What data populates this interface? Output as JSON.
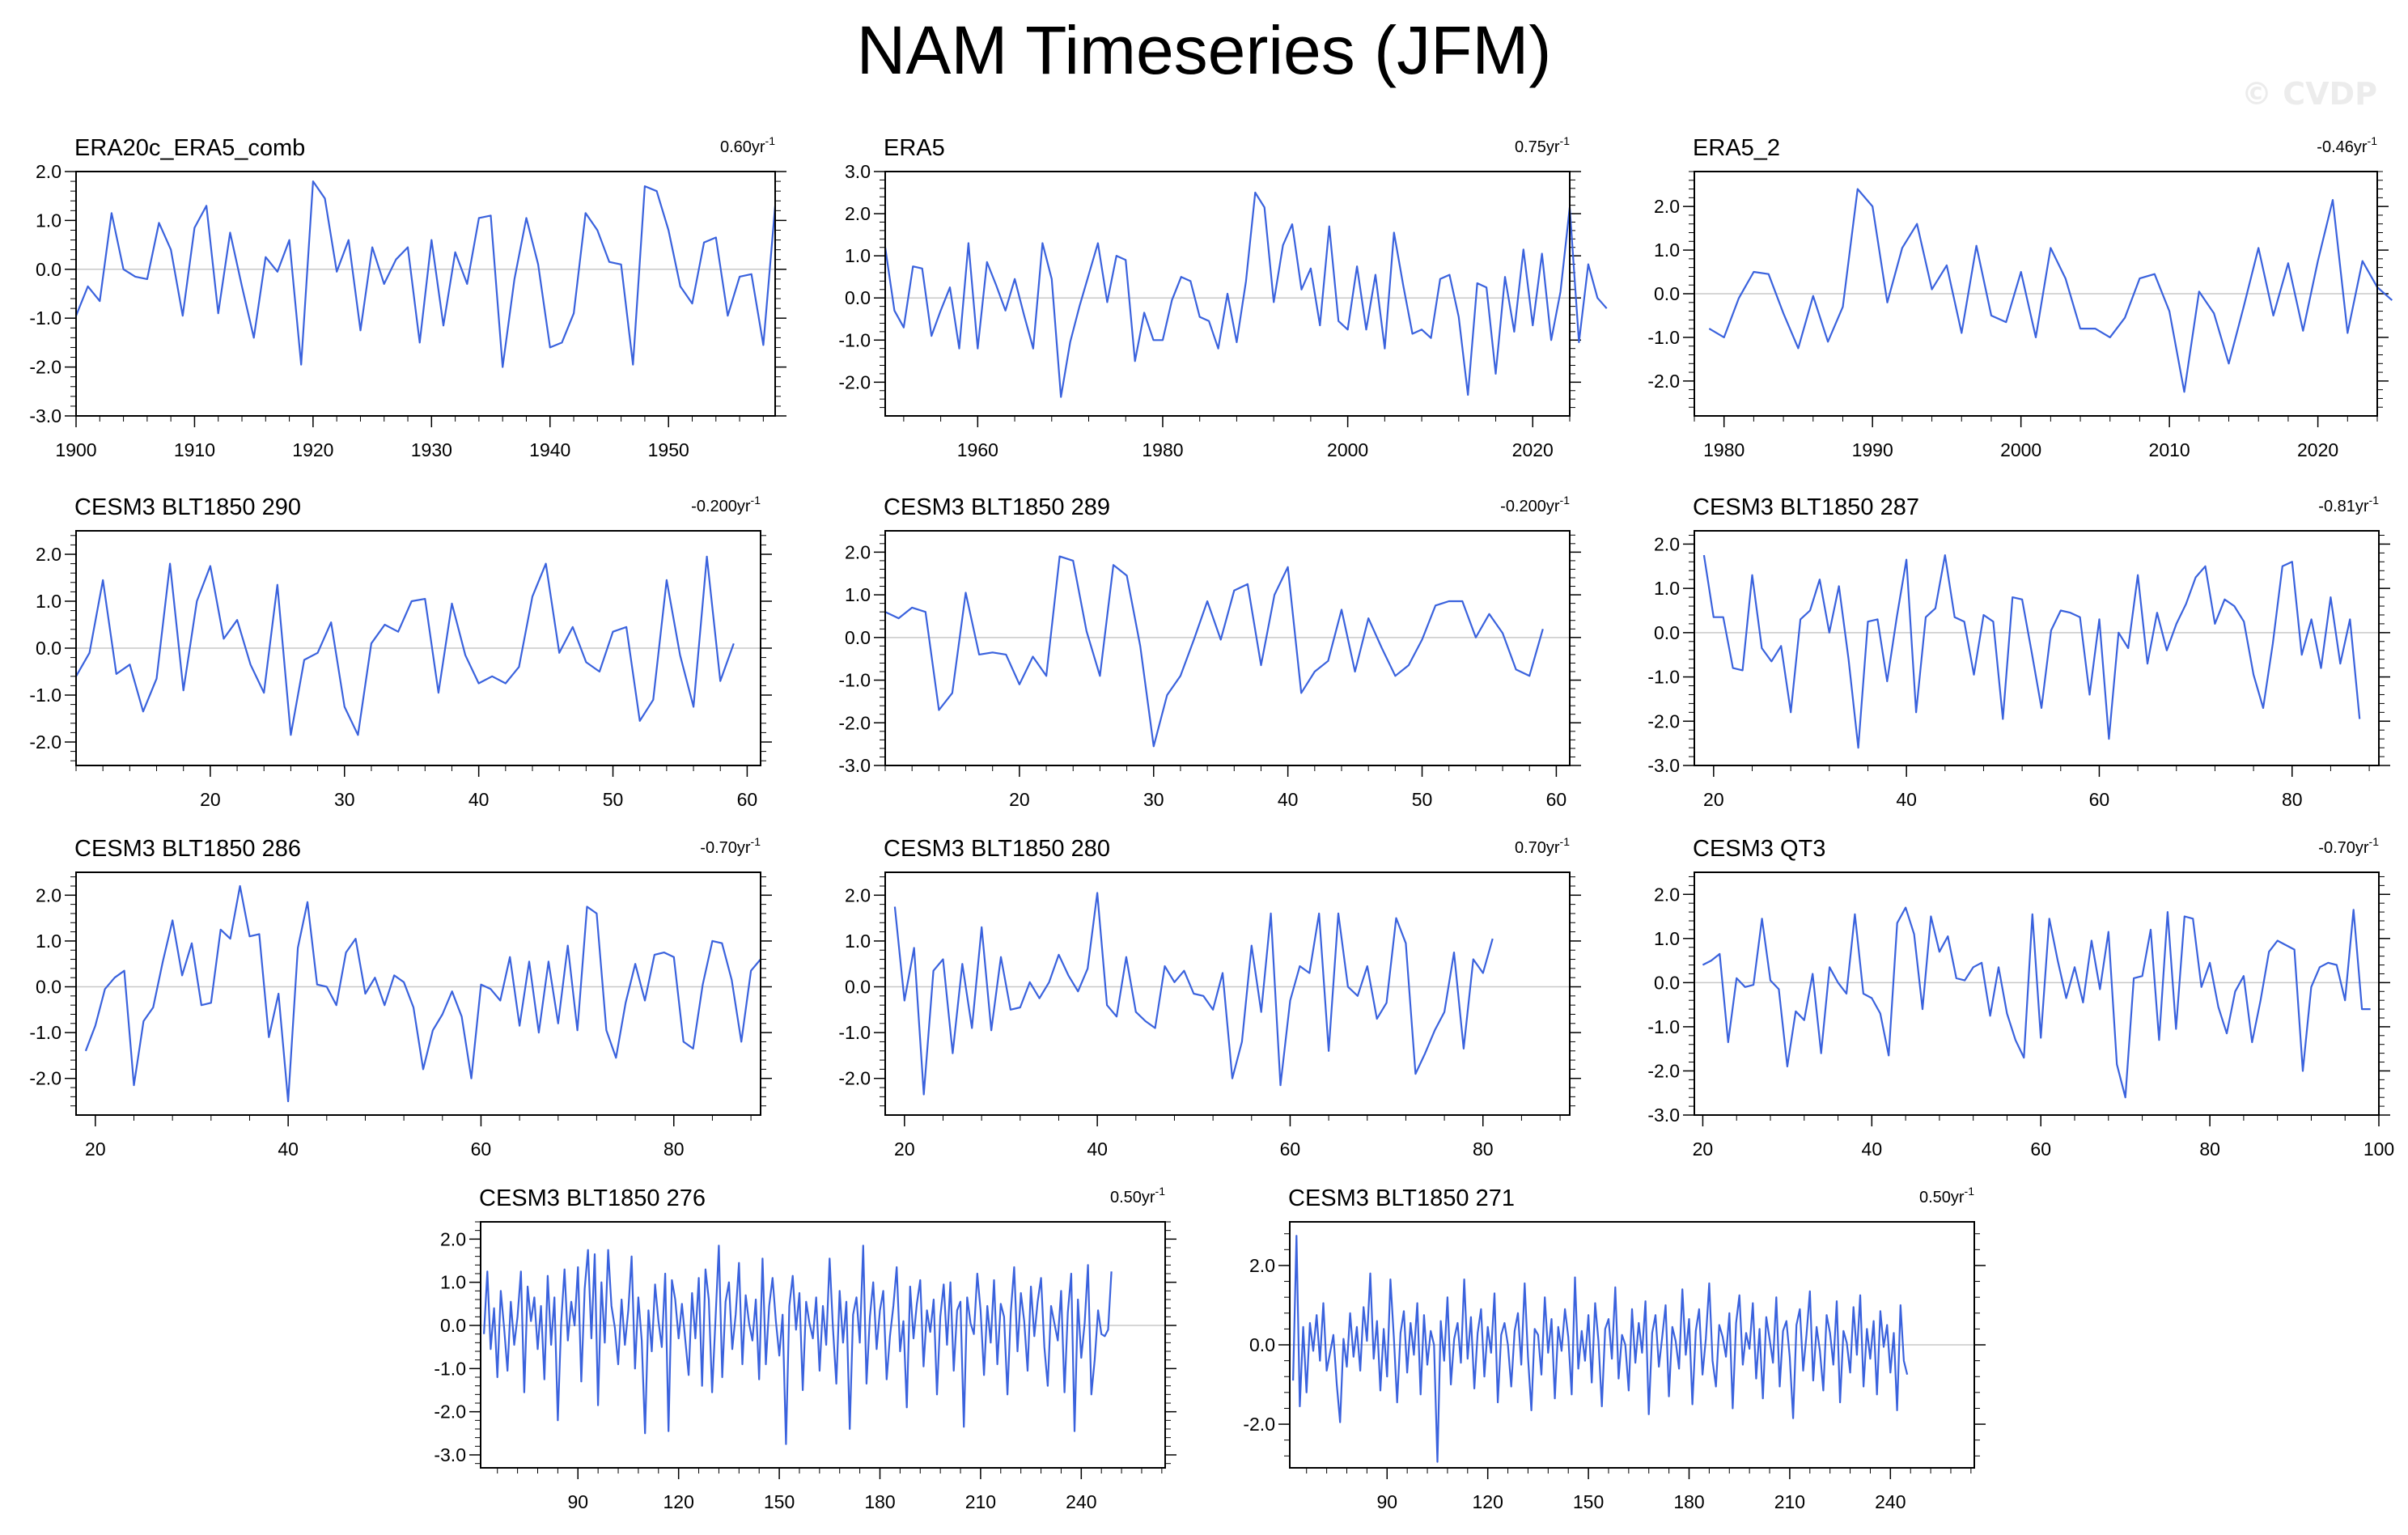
{
  "title": "NAM Timeseries (JFM)",
  "watermark": "© CVDP",
  "colors": {
    "line": "#3a62dd",
    "second_line": "#888888",
    "zero_line": "#c8c8c8",
    "frame": "#000000"
  },
  "chart_data": [
    {
      "type": "line",
      "name": "ERA20c_ERA5_comb",
      "trend_prefix": "0.60yr",
      "trend_suffix": "-1",
      "xlim": [
        1900,
        1959
      ],
      "ylim": [
        -3,
        2
      ],
      "xticks": [
        1900,
        1910,
        1920,
        1930,
        1940,
        1950
      ],
      "yticks": [
        "2.0",
        "1.0",
        "0.0",
        "-1.0",
        "-2.0",
        "-3.0"
      ],
      "x_start": 1900,
      "values": [
        -0.95,
        -0.35,
        -0.65,
        1.15,
        0.0,
        -0.15,
        -0.2,
        0.95,
        0.4,
        -0.95,
        0.85,
        1.3,
        -0.9,
        0.75,
        -0.35,
        -1.4,
        0.25,
        -0.05,
        0.6,
        -1.95,
        1.8,
        1.45,
        -0.05,
        0.6,
        -1.25,
        0.45,
        -0.3,
        0.2,
        0.45,
        -1.5,
        0.6,
        -1.15,
        0.35,
        -0.3,
        1.05,
        1.1,
        -2.0,
        -0.2,
        1.05,
        0.1,
        -1.6,
        -1.5,
        -0.9,
        1.15,
        0.8,
        0.15,
        0.1,
        -1.95,
        1.7,
        1.6,
        0.8,
        -0.35,
        -0.7,
        0.55,
        0.65,
        -0.95,
        -0.15,
        -0.1,
        -1.55,
        1.3
      ]
    },
    {
      "type": "line",
      "name": "ERA5",
      "trend_prefix": "0.75yr",
      "trend_suffix": "-1",
      "xlim": [
        1950,
        2024
      ],
      "ylim": [
        -2.8,
        3
      ],
      "xticks": [
        1960,
        1980,
        2000,
        2020
      ],
      "yticks": [
        "3.0",
        "2.0",
        "1.0",
        "0.0",
        "-1.0",
        "-2.0"
      ],
      "x_start": 1950,
      "values": [
        1.2,
        -0.3,
        -0.7,
        0.75,
        0.7,
        -0.9,
        -0.3,
        0.25,
        -1.2,
        1.3,
        -1.2,
        0.85,
        0.3,
        -0.3,
        0.45,
        -0.4,
        -1.2,
        1.3,
        0.45,
        -2.35,
        -1.05,
        -0.2,
        0.55,
        1.3,
        -0.1,
        1.0,
        0.9,
        -1.5,
        -0.35,
        -1.0,
        -1.0,
        -0.05,
        0.5,
        0.4,
        -0.45,
        -0.55,
        -1.2,
        0.1,
        -1.05,
        0.4,
        2.5,
        2.15,
        -0.1,
        1.25,
        1.75,
        0.2,
        0.7,
        -0.65,
        1.7,
        -0.55,
        -0.75,
        0.75,
        -0.75,
        0.55,
        -1.2,
        1.55,
        0.3,
        -0.85,
        -0.75,
        -0.95,
        0.45,
        0.55,
        -0.45,
        -2.3,
        0.35,
        0.25,
        -1.8,
        0.5,
        -0.8,
        1.15,
        -0.65,
        1.05,
        -1.0,
        0.15,
        2.15,
        -1.05,
        0.8,
        0.0,
        -0.25
      ]
    },
    {
      "type": "line",
      "name": "ERA5_2",
      "trend_prefix": "-0.46yr",
      "trend_suffix": "-1",
      "xlim": [
        1978,
        2024
      ],
      "ylim": [
        -2.8,
        2.8
      ],
      "xticks": [
        1980,
        1990,
        2000,
        2010,
        2020
      ],
      "yticks": [
        "2.0",
        "1.0",
        "0.0",
        "-1.0",
        "-2.0"
      ],
      "x_start": 1979,
      "values": [
        -0.8,
        -1.0,
        -0.1,
        0.5,
        0.45,
        -0.45,
        -1.25,
        -0.05,
        -1.1,
        -0.3,
        2.4,
        2.0,
        -0.2,
        1.05,
        1.6,
        0.1,
        0.65,
        -0.9,
        1.1,
        -0.5,
        -0.65,
        0.5,
        -1.0,
        1.05,
        0.35,
        -0.8,
        -0.8,
        -1.0,
        -0.55,
        0.35,
        0.45,
        -0.4,
        -2.25,
        0.05,
        -0.45,
        -1.6,
        -0.3,
        1.05,
        -0.5,
        0.7,
        -0.85,
        0.75,
        2.15,
        -0.9,
        0.75,
        0.15,
        -0.15
      ]
    },
    {
      "type": "line",
      "name": "CESM3 BLT1850 290",
      "trend_prefix": "-0.200yr",
      "trend_suffix": "-1",
      "xlim": [
        10,
        61
      ],
      "ylim": [
        -2.5,
        2.5
      ],
      "xticks": [
        20,
        30,
        40,
        50,
        60
      ],
      "yticks": [
        "2.0",
        "1.0",
        "0.0",
        "-1.0",
        "-2.0"
      ],
      "x_start": 10,
      "values": [
        -0.6,
        -0.1,
        1.45,
        -0.55,
        -0.35,
        -1.35,
        -0.65,
        1.8,
        -0.9,
        1.0,
        1.75,
        0.2,
        0.6,
        -0.35,
        -0.95,
        1.35,
        -1.85,
        -0.25,
        -0.1,
        0.55,
        -1.25,
        -1.85,
        0.1,
        0.5,
        0.35,
        1.0,
        1.05,
        -0.95,
        0.95,
        -0.15,
        -0.75,
        -0.6,
        -0.75,
        -0.4,
        1.1,
        1.8,
        -0.1,
        0.45,
        -0.3,
        -0.5,
        0.35,
        0.45,
        -1.55,
        -1.1,
        1.45,
        -0.15,
        -1.25,
        1.95,
        -0.7,
        0.1
      ]
    },
    {
      "type": "line",
      "name": "CESM3 BLT1850 289",
      "trend_prefix": "-0.200yr",
      "trend_suffix": "-1",
      "xlim": [
        10,
        61
      ],
      "ylim": [
        -3,
        2.5
      ],
      "xticks": [
        20,
        30,
        40,
        50,
        60
      ],
      "yticks": [
        "2.0",
        "1.0",
        "0.0",
        "-1.0",
        "-2.0",
        "-3.0"
      ],
      "x_start": 10,
      "values": [
        0.6,
        0.45,
        0.7,
        0.6,
        -1.7,
        -1.3,
        1.05,
        -0.4,
        -0.35,
        -0.4,
        -1.1,
        -0.45,
        -0.9,
        1.9,
        1.8,
        0.15,
        -0.9,
        1.7,
        1.45,
        -0.2,
        -2.55,
        -1.35,
        -0.9,
        -0.05,
        0.85,
        -0.05,
        1.1,
        1.25,
        -0.65,
        1.0,
        1.65,
        -1.3,
        -0.8,
        -0.55,
        0.65,
        -0.8,
        0.45,
        -0.25,
        -0.9,
        -0.65,
        -0.05,
        0.75,
        0.85,
        0.85,
        0.0,
        0.55,
        0.1,
        -0.75,
        -0.9,
        0.2
      ]
    },
    {
      "type": "line",
      "name": "CESM3 BLT1850 287",
      "trend_prefix": "-0.81yr",
      "trend_suffix": "-1",
      "xlim": [
        18,
        89
      ],
      "ylim": [
        -3,
        2.3
      ],
      "xticks": [
        20,
        40,
        60,
        80
      ],
      "yticks": [
        "2.0",
        "1.0",
        "0.0",
        "-1.0",
        "-2.0",
        "-3.0"
      ],
      "x_start": 19,
      "values": [
        1.75,
        0.35,
        0.35,
        -0.8,
        -0.85,
        1.3,
        -0.35,
        -0.65,
        -0.3,
        -1.8,
        0.3,
        0.5,
        1.2,
        0.0,
        1.05,
        -0.6,
        -2.6,
        0.25,
        0.3,
        -1.1,
        0.35,
        1.65,
        -1.8,
        0.35,
        0.55,
        1.75,
        0.35,
        0.25,
        -0.95,
        0.4,
        0.25,
        -1.95,
        0.8,
        0.75,
        -0.45,
        -1.7,
        0.05,
        0.5,
        0.45,
        0.35,
        -1.4,
        0.3,
        -2.4,
        0.0,
        -0.35,
        1.3,
        -0.7,
        0.45,
        -0.4,
        0.2,
        0.65,
        1.25,
        1.5,
        0.2,
        0.75,
        0.6,
        0.25,
        -0.95,
        -1.7,
        -0.25,
        1.5,
        1.6,
        -0.5,
        0.3,
        -0.8,
        0.8,
        -0.7,
        0.3,
        -1.95
      ]
    },
    {
      "type": "line",
      "name": "CESM3 BLT1850 286",
      "trend_prefix": "-0.70yr",
      "trend_suffix": "-1",
      "xlim": [
        18,
        89
      ],
      "ylim": [
        -2.8,
        2.5
      ],
      "xticks": [
        20,
        40,
        60,
        80
      ],
      "yticks": [
        "2.0",
        "1.0",
        "0.0",
        "-1.0",
        "-2.0"
      ],
      "x_start": 19,
      "values": [
        -1.4,
        -0.85,
        -0.05,
        0.2,
        0.35,
        -2.15,
        -0.75,
        -0.45,
        0.55,
        1.45,
        0.25,
        0.95,
        -0.4,
        -0.35,
        1.25,
        1.05,
        2.2,
        1.1,
        1.15,
        -1.1,
        -0.15,
        -2.5,
        0.85,
        1.85,
        0.05,
        0.0,
        -0.4,
        0.75,
        1.05,
        -0.15,
        0.2,
        -0.4,
        0.25,
        0.1,
        -0.45,
        -1.8,
        -0.95,
        -0.6,
        -0.1,
        -0.65,
        -2.0,
        0.05,
        -0.05,
        -0.3,
        0.65,
        -0.85,
        0.55,
        -1.0,
        0.55,
        -0.8,
        0.9,
        -0.95,
        1.75,
        1.6,
        -0.95,
        -1.55,
        -0.35,
        0.5,
        -0.3,
        0.7,
        0.75,
        0.65,
        -1.2,
        -1.35,
        0.05,
        1.0,
        0.95,
        0.15,
        -1.2,
        0.35,
        0.6
      ]
    },
    {
      "type": "line",
      "name": "CESM3 BLT1850 280",
      "trend_prefix": "0.70yr",
      "trend_suffix": "-1",
      "xlim": [
        18,
        89
      ],
      "ylim": [
        -2.8,
        2.5
      ],
      "xticks": [
        20,
        40,
        60,
        80
      ],
      "yticks": [
        "2.0",
        "1.0",
        "0.0",
        "-1.0",
        "-2.0"
      ],
      "x_start": 19,
      "values": [
        1.75,
        -0.3,
        0.85,
        -2.35,
        0.35,
        0.6,
        -1.45,
        0.5,
        -0.9,
        1.3,
        -0.95,
        0.65,
        -0.5,
        -0.45,
        0.1,
        -0.25,
        0.1,
        0.7,
        0.25,
        -0.1,
        0.4,
        2.05,
        -0.4,
        -0.65,
        0.65,
        -0.55,
        -0.75,
        -0.9,
        0.45,
        0.1,
        0.35,
        -0.15,
        -0.2,
        -0.5,
        0.3,
        -2.0,
        -1.2,
        0.9,
        -0.55,
        1.6,
        -2.15,
        -0.3,
        0.45,
        0.3,
        1.6,
        -1.4,
        1.6,
        0.0,
        -0.2,
        0.45,
        -0.7,
        -0.35,
        1.5,
        0.95,
        -1.9,
        -1.45,
        -0.95,
        -0.55,
        0.75,
        -1.35,
        0.6,
        0.3,
        1.05
      ]
    },
    {
      "type": "line",
      "name": "CESM3 QT3",
      "trend_prefix": "-0.70yr",
      "trend_suffix": "-1",
      "xlim": [
        19,
        100
      ],
      "ylim": [
        -3,
        2.5
      ],
      "xticks": [
        20,
        40,
        60,
        80,
        100
      ],
      "yticks": [
        "2.0",
        "1.0",
        "0.0",
        "-1.0",
        "-2.0",
        "-3.0"
      ],
      "x_start": 20,
      "values": [
        0.4,
        0.5,
        0.65,
        -1.35,
        0.1,
        -0.1,
        -0.05,
        1.45,
        0.05,
        -0.15,
        -1.9,
        -0.65,
        -0.85,
        0.2,
        -1.6,
        0.35,
        0.0,
        -0.25,
        1.55,
        -0.25,
        -0.35,
        -0.7,
        -1.65,
        1.35,
        1.7,
        1.1,
        -0.6,
        1.5,
        0.7,
        1.05,
        0.1,
        0.05,
        0.35,
        0.45,
        -0.75,
        0.35,
        -0.7,
        -1.3,
        -1.7,
        1.55,
        -1.25,
        1.45,
        0.5,
        -0.35,
        0.35,
        -0.45,
        0.95,
        -0.15,
        1.15,
        -1.85,
        -2.6,
        0.1,
        0.15,
        1.2,
        -1.3,
        1.6,
        -1.05,
        1.5,
        1.45,
        -0.1,
        0.45,
        -0.55,
        -1.15,
        -0.2,
        0.15,
        -1.35,
        -0.4,
        0.7,
        0.95,
        0.85,
        0.75,
        -2.0,
        -0.1,
        0.35,
        0.45,
        0.4,
        -0.4,
        1.65,
        -0.6,
        -0.6
      ]
    },
    {
      "type": "line",
      "name": "CESM3 BLT1850 276",
      "trend_prefix": "0.50yr",
      "trend_suffix": "-1",
      "xlim": [
        61,
        265
      ],
      "ylim": [
        -3.3,
        2.4
      ],
      "xticks": [
        90,
        120,
        150,
        180,
        210,
        240
      ],
      "yticks": [
        "2.0",
        "1.0",
        "0.0",
        "-1.0",
        "-2.0",
        "-3.0"
      ],
      "x_start": 62,
      "values": [
        -0.2,
        1.25,
        -0.55,
        0.4,
        -1.2,
        0.8,
        -0.05,
        -1.05,
        0.55,
        -0.45,
        0.2,
        1.25,
        -1.55,
        0.9,
        0.1,
        0.65,
        -0.55,
        0.45,
        -1.25,
        1.15,
        -0.45,
        0.65,
        -2.2,
        0.05,
        1.3,
        -0.35,
        0.55,
        0.0,
        1.35,
        -1.3,
        0.85,
        1.75,
        -0.3,
        1.65,
        -1.85,
        1.0,
        -0.4,
        1.75,
        0.45,
        -0.05,
        -0.9,
        0.6,
        -0.45,
        0.35,
        1.6,
        -1.0,
        0.65,
        -0.35,
        -2.5,
        0.35,
        -0.6,
        0.95,
        0.1,
        -0.5,
        1.2,
        -2.45,
        1.05,
        0.6,
        -0.3,
        0.5,
        -0.35,
        -1.15,
        0.75,
        -0.3,
        1.1,
        -1.4,
        1.3,
        0.6,
        -1.55,
        0.15,
        1.85,
        -1.2,
        0.55,
        1.0,
        -0.55,
        0.25,
        1.45,
        -0.9,
        0.7,
        0.05,
        -0.35,
        0.6,
        -1.25,
        1.55,
        -0.9,
        0.45,
        1.1,
        0.1,
        -0.7,
        0.25,
        -2.75,
        0.45,
        1.15,
        -0.1,
        0.75,
        -1.5,
        0.55,
        0.05,
        -0.3,
        0.65,
        -1.05,
        0.45,
        -0.45,
        1.55,
        -0.05,
        -1.35,
        0.8,
        -0.4,
        0.55,
        -2.4,
        0.25,
        0.65,
        -0.4,
        1.85,
        -1.35,
        0.2,
        1.0,
        -0.55,
        0.35,
        0.8,
        -1.25,
        -0.25,
        0.45,
        1.35,
        -0.6,
        0.1,
        -1.9,
        0.9,
        -0.3,
        0.5,
        1.05,
        -0.95,
        0.35,
        -0.15,
        0.6,
        -1.6,
        0.2,
        0.95,
        -0.45,
        1.0,
        -1.05,
        0.35,
        0.55,
        -2.35,
        0.65,
        0.05,
        -0.2,
        1.2,
        0.35,
        -1.15,
        0.45,
        -0.4,
        1.05,
        -0.9,
        0.5,
        0.2,
        -1.6,
        0.3,
        1.35,
        -0.6,
        0.75,
        0.1,
        -1.05,
        0.9,
        -0.25,
        0.55,
        1.1,
        -0.5,
        -1.4,
        0.45,
        0.05,
        -0.35,
        0.8,
        -1.55,
        0.3,
        1.2,
        -2.45,
        0.6,
        -0.75,
        0.05,
        1.4,
        -1.6,
        -0.8,
        0.35,
        -0.2,
        -0.25,
        -0.1,
        1.25
      ]
    },
    {
      "type": "line",
      "name": "CESM3 BLT1850 271",
      "trend_prefix": "0.50yr",
      "trend_suffix": "-1",
      "xlim": [
        61,
        265
      ],
      "ylim": [
        -3.1,
        3.1
      ],
      "xticks": [
        90,
        120,
        150,
        180,
        210,
        240
      ],
      "yticks": [
        "2.0",
        "0.0",
        "-2.0"
      ],
      "x_start": 62,
      "values": [
        -0.9,
        2.75,
        -1.55,
        0.45,
        -1.2,
        0.55,
        -0.15,
        0.75,
        -0.4,
        1.05,
        -0.65,
        -0.2,
        0.25,
        -1.0,
        -1.95,
        0.15,
        -0.55,
        0.8,
        -0.3,
        0.45,
        -0.65,
        0.95,
        0.1,
        1.8,
        -0.35,
        0.6,
        -1.15,
        0.4,
        -0.8,
        1.65,
        0.2,
        -1.45,
        0.3,
        0.85,
        -0.7,
        0.55,
        -0.25,
        1.05,
        -1.25,
        0.75,
        -0.5,
        0.35,
        0.0,
        -2.95,
        0.6,
        -0.4,
        1.2,
        -1.0,
        0.15,
        0.55,
        -0.45,
        1.65,
        -0.35,
        0.7,
        -1.1,
        0.3,
        0.9,
        -0.8,
        0.45,
        -0.2,
        1.3,
        -1.45,
        0.25,
        0.55,
        0.0,
        -1.05,
        0.35,
        0.8,
        -0.5,
        1.55,
        -0.3,
        -1.65,
        0.4,
        0.25,
        -0.75,
        1.2,
        -0.2,
        0.65,
        -1.35,
        0.45,
        -0.15,
        0.9,
        0.2,
        -1.25,
        1.7,
        -0.6,
        0.35,
        -0.4,
        0.75,
        -0.95,
        1.05,
        0.1,
        -1.55,
        0.4,
        0.65,
        -0.35,
        1.45,
        -0.85,
        0.25,
        0.0,
        -1.15,
        0.9,
        -0.45,
        0.55,
        -0.2,
        1.1,
        -1.75,
        0.3,
        0.75,
        -0.55,
        0.2,
        1.0,
        -1.3,
        0.45,
        0.1,
        -0.6,
        1.4,
        -0.25,
        0.65,
        -1.5,
        0.35,
        0.9,
        -0.75,
        0.15,
        1.55,
        -0.4,
        -1.05,
        0.5,
        0.2,
        -0.3,
        0.8,
        -1.6,
        0.55,
        1.25,
        -0.5,
        0.3,
        -0.1,
        1.05,
        -0.85,
        0.4,
        -1.35,
        0.7,
        0.15,
        -0.45,
        1.2,
        -1.05,
        0.35,
        0.6,
        -0.3,
        -1.85,
        0.5,
        0.9,
        -0.65,
        0.25,
        1.35,
        -0.9,
        0.45,
        -0.15,
        -1.15,
        0.75,
        0.3,
        -0.5,
        1.1,
        -1.45,
        0.35,
        0.05,
        -0.7,
        0.95,
        -0.25,
        1.25,
        -1.05,
        0.4,
        -0.35,
        0.6,
        -1.25,
        0.85,
        -0.05,
        0.5,
        -0.7,
        0.3,
        -1.65,
        1.0,
        -0.4,
        -0.75
      ]
    }
  ]
}
